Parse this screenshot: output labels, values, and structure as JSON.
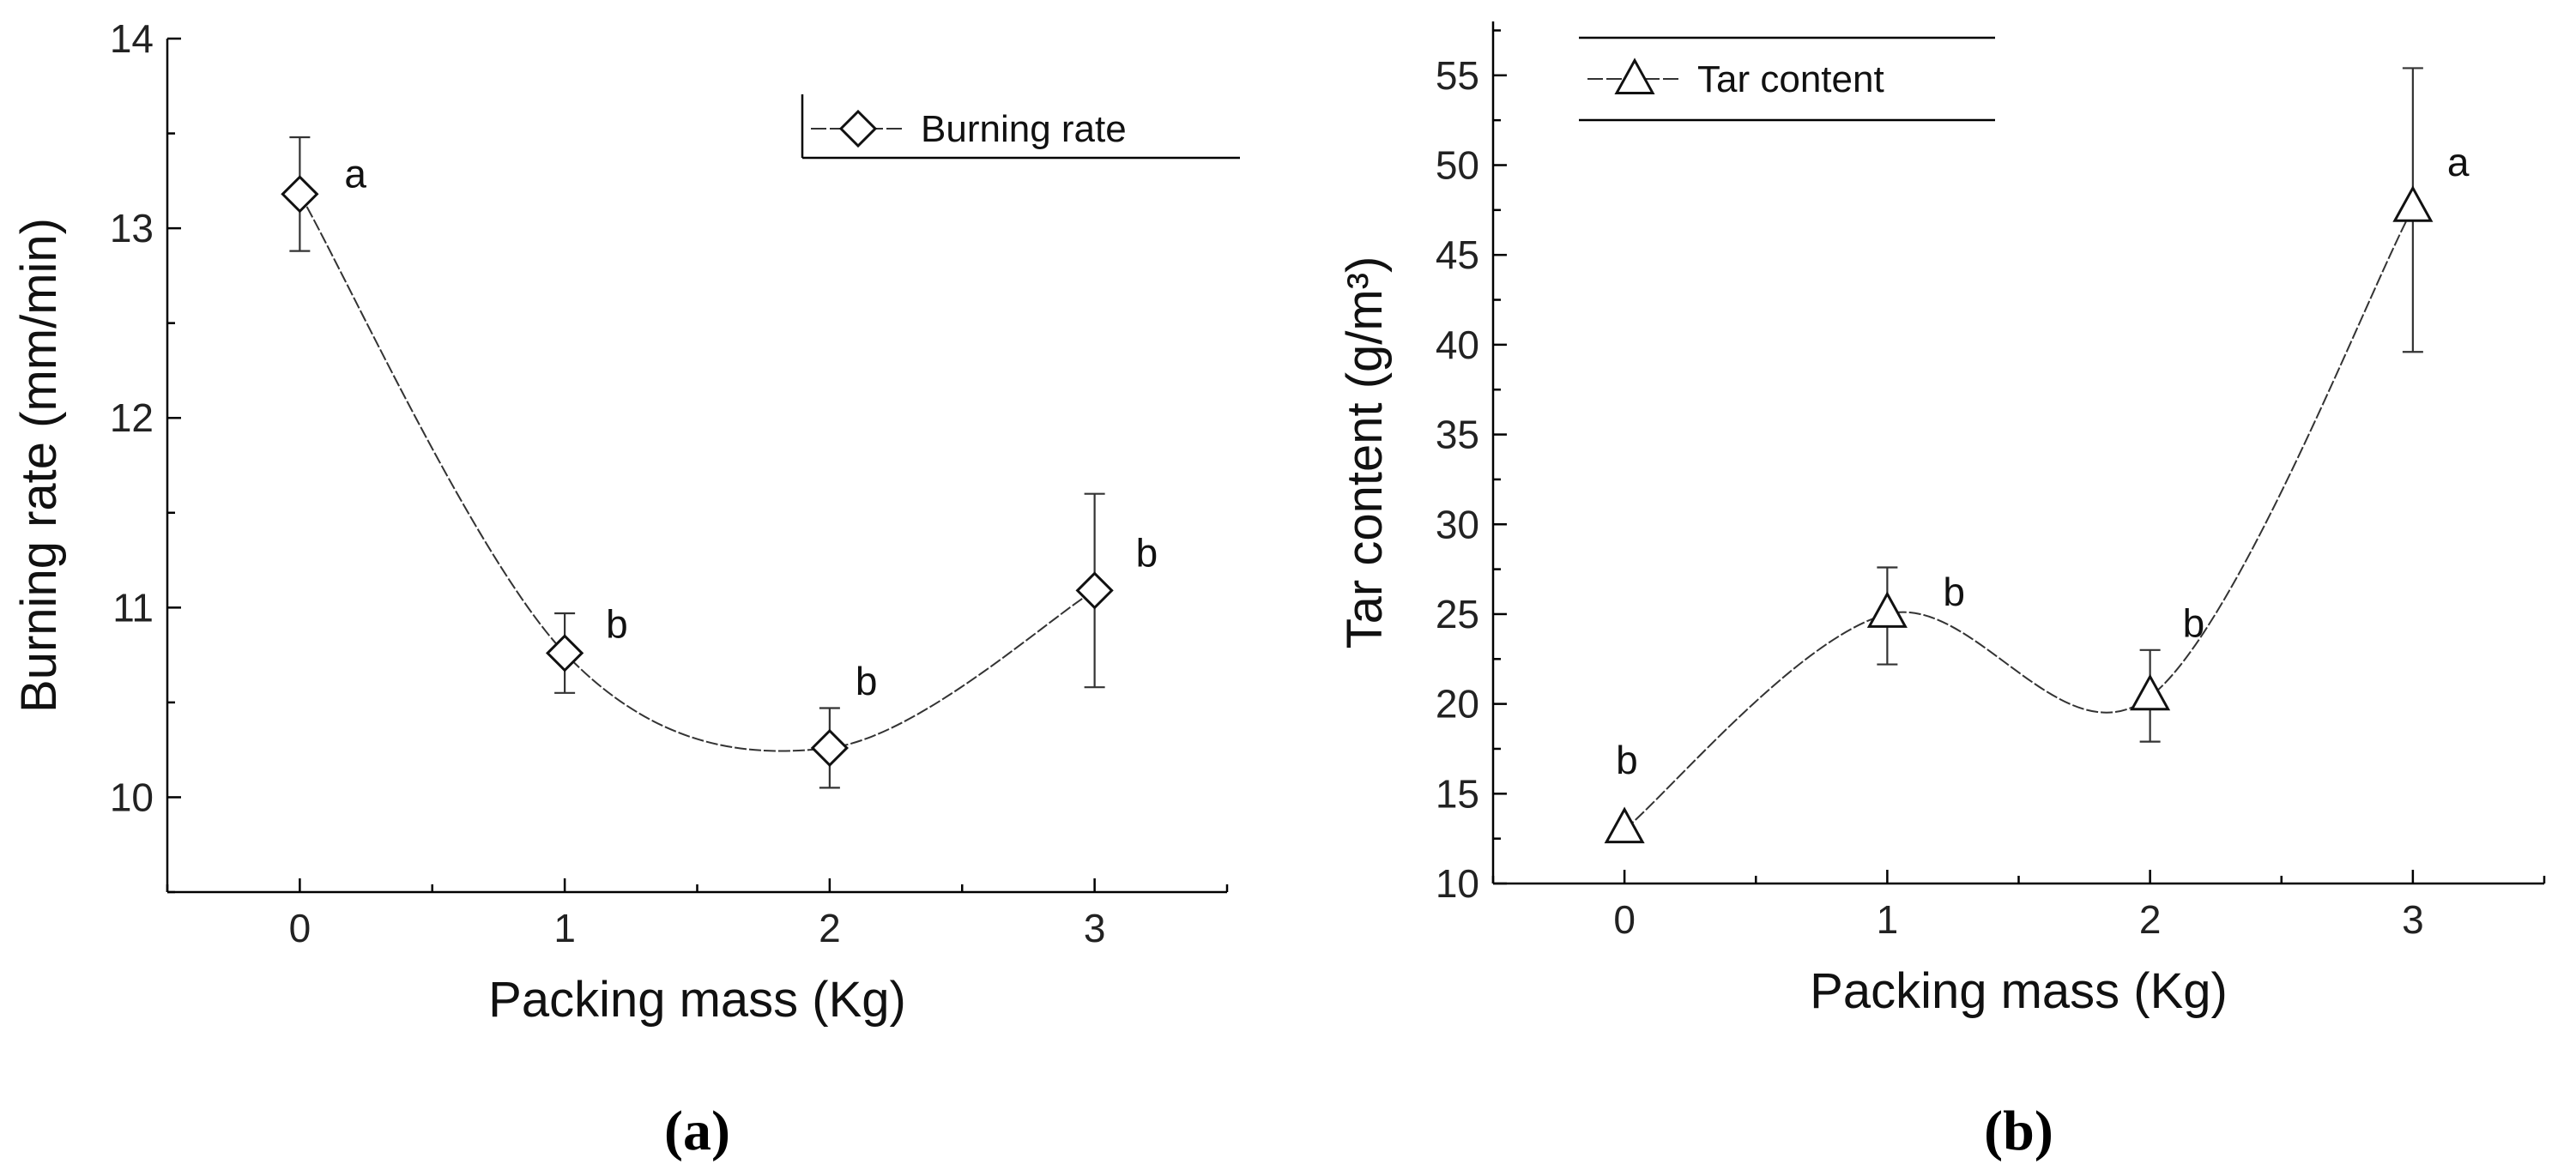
{
  "chart_data": [
    {
      "panel": "(a)",
      "type": "line",
      "xlabel": "Packing mass (Kg)",
      "ylabel": "Burning rate (mm/min)",
      "xlim": [
        -0.5,
        3.5
      ],
      "ylim": [
        9.5,
        14
      ],
      "xticks": [
        0,
        1,
        2,
        3
      ],
      "yticks": [
        10,
        11,
        12,
        13,
        14
      ],
      "series": [
        {
          "name": "Burning rate",
          "marker": "diamond",
          "x": [
            0,
            1,
            2,
            3
          ],
          "y": [
            13.18,
            10.76,
            10.26,
            11.09
          ],
          "err_low": [
            12.88,
            10.55,
            10.05,
            10.58
          ],
          "err_high": [
            13.48,
            10.97,
            10.47,
            11.6
          ],
          "letters": [
            "a",
            "b",
            "b",
            "b"
          ]
        }
      ],
      "legend_position": "top-right"
    },
    {
      "panel": "(b)",
      "type": "line",
      "xlabel": "Packing mass (Kg)",
      "ylabel": "Tar content (g/m³)",
      "xlim": [
        -0.5,
        3.5
      ],
      "ylim": [
        10,
        58
      ],
      "xticks": [
        0,
        1,
        2,
        3
      ],
      "yticks": [
        10,
        15,
        20,
        25,
        30,
        35,
        40,
        45,
        50,
        55
      ],
      "series": [
        {
          "name": "Tar content",
          "marker": "triangle",
          "x": [
            0,
            1,
            2,
            3
          ],
          "y": [
            13.0,
            25.0,
            20.4,
            47.6
          ],
          "err_low": [
            13.0,
            22.2,
            17.9,
            39.6
          ],
          "err_high": [
            13.0,
            27.6,
            23.0,
            55.4
          ],
          "letters": [
            "b",
            "b",
            "b",
            "a"
          ]
        }
      ],
      "legend_position": "top-left"
    }
  ]
}
